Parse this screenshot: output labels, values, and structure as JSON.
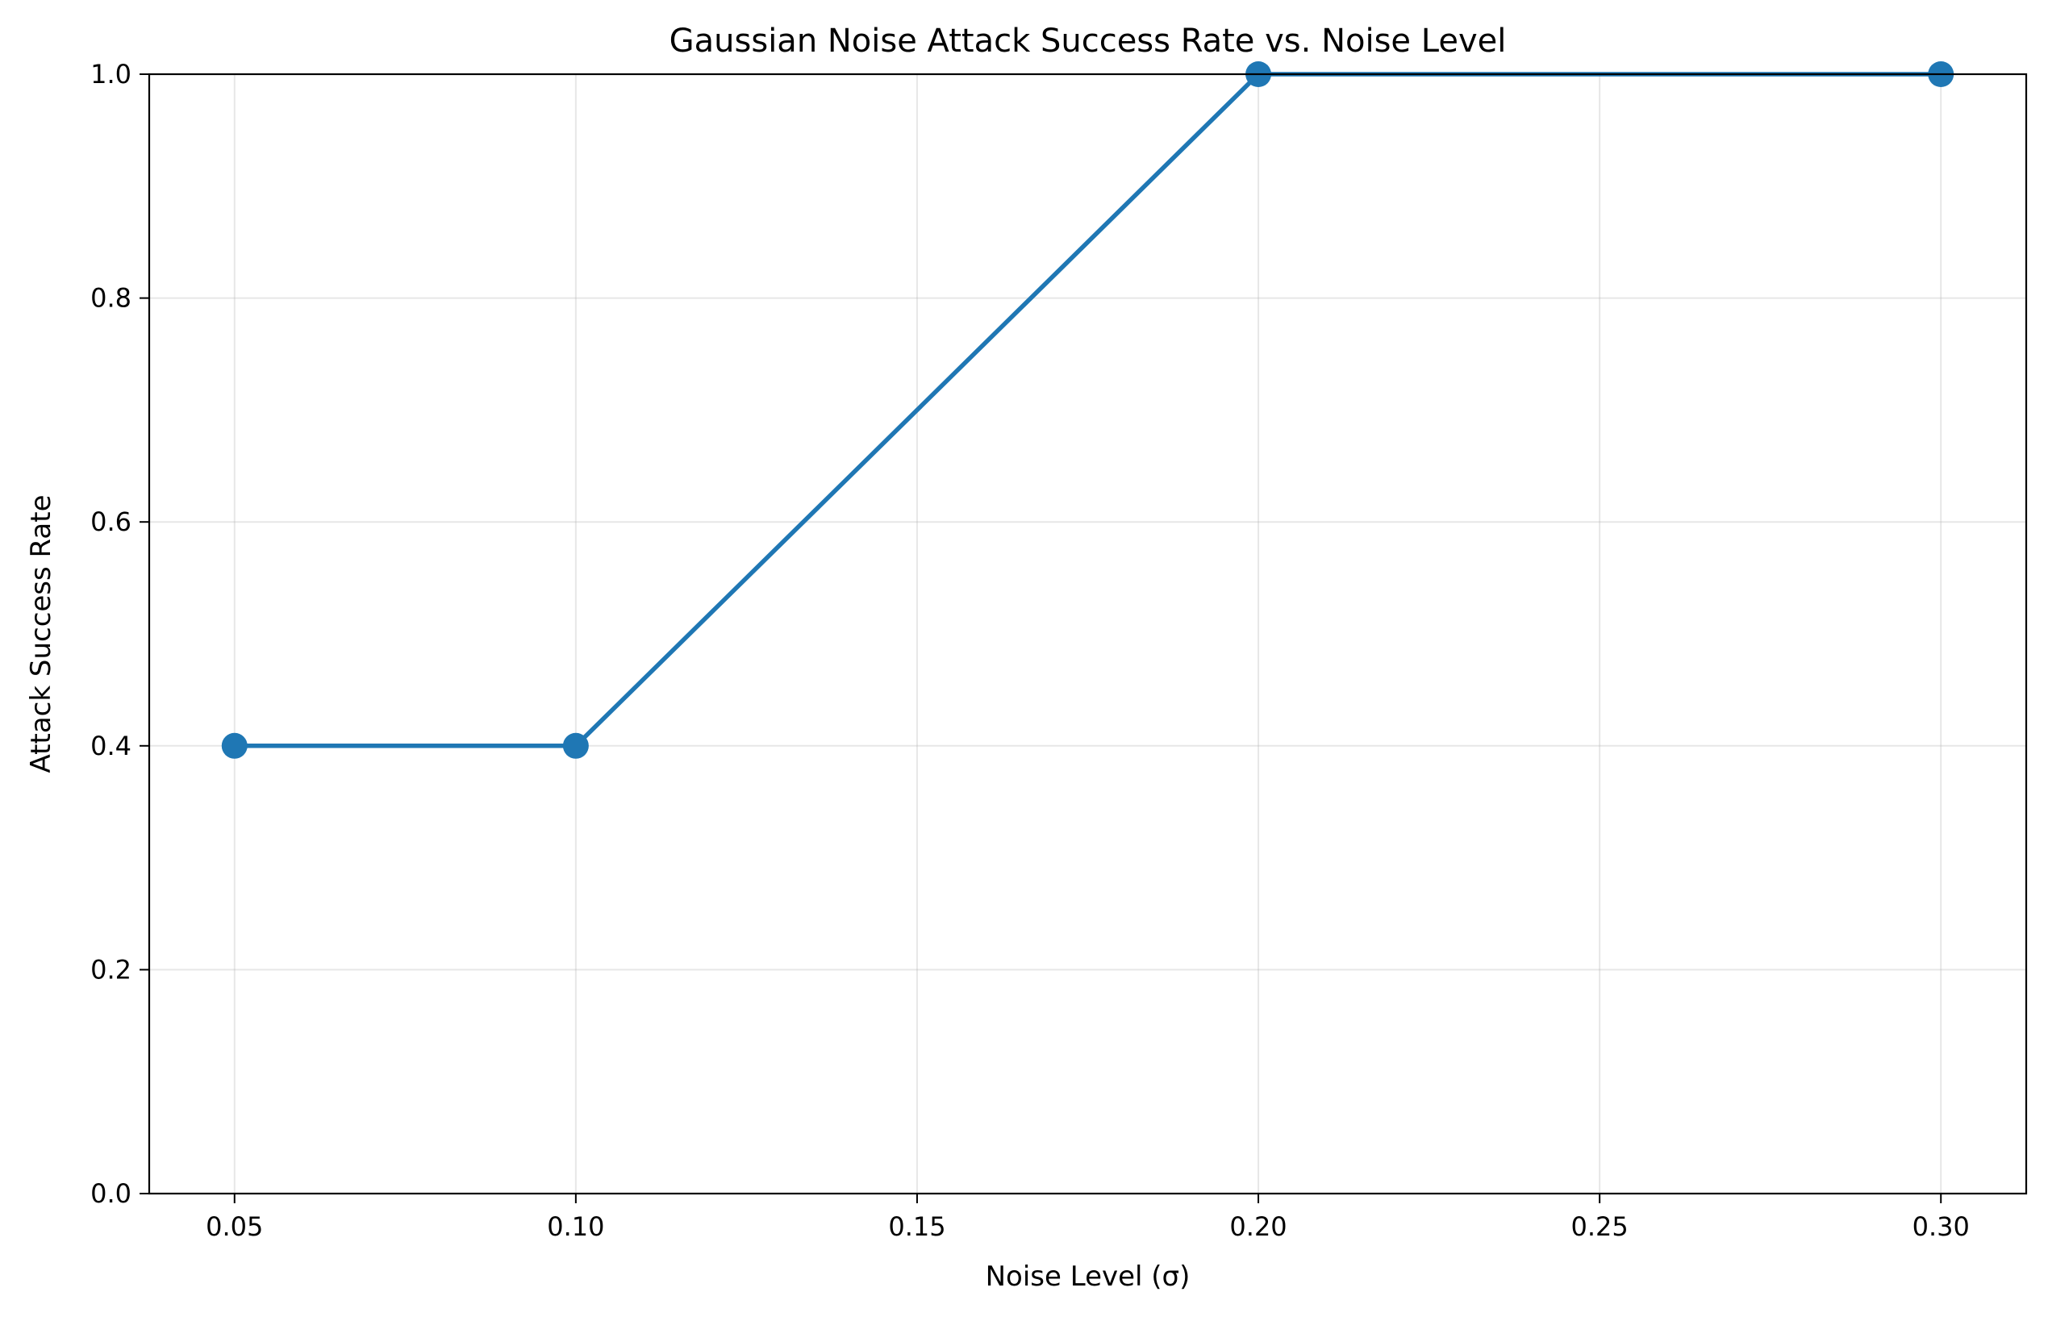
{
  "chart_data": {
    "type": "line",
    "title": "Gaussian Noise Attack Success Rate vs. Noise Level",
    "xlabel": "Noise Level (σ)",
    "ylabel": "Attack Success Rate",
    "xlim": [
      0.0375,
      0.3125
    ],
    "ylim": [
      0.0,
      1.0
    ],
    "grid": true,
    "x_ticks": [
      0.05,
      0.1,
      0.15,
      0.2,
      0.25,
      0.3
    ],
    "x_tick_labels": [
      "0.05",
      "0.10",
      "0.15",
      "0.20",
      "0.25",
      "0.30"
    ],
    "y_ticks": [
      0.0,
      0.2,
      0.4,
      0.6,
      0.8,
      1.0
    ],
    "y_tick_labels": [
      "0.0",
      "0.2",
      "0.4",
      "0.6",
      "0.8",
      "1.0"
    ],
    "series": [
      {
        "name": "Attack Success Rate",
        "color": "#1f77b4",
        "x": [
          0.05,
          0.1,
          0.2,
          0.3
        ],
        "values": [
          0.4,
          0.4,
          1.0,
          1.0
        ]
      }
    ]
  }
}
